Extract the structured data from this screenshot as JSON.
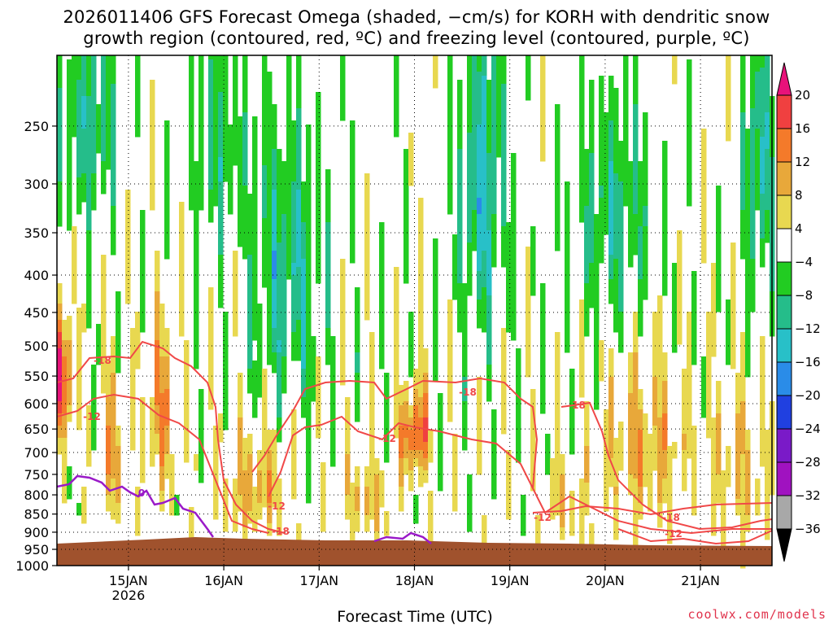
{
  "chart_data": {
    "type": "heatmap",
    "title_line1": "2026011406 GFS Forecast Omega (shaded, −cm/s) for KORH with dendritic snow",
    "title_line2": "growth region (contoured, red, ºC) and freezing level (contoured, purple, ºC)",
    "xlabel": "Forecast Time (UTC)",
    "ylabel": "",
    "y_ticks": [
      250,
      300,
      350,
      400,
      450,
      500,
      550,
      600,
      650,
      700,
      750,
      800,
      850,
      900,
      950,
      1000
    ],
    "y_scale": "log-pressure",
    "ylim": [
      1000,
      200
    ],
    "x_ticks": [
      {
        "label": "15JAN",
        "sub": "2026",
        "hours": 18
      },
      {
        "label": "16JAN",
        "sub": "",
        "hours": 42
      },
      {
        "label": "17JAN",
        "sub": "",
        "hours": 66
      },
      {
        "label": "18JAN",
        "sub": "",
        "hours": 90
      },
      {
        "label": "19JAN",
        "sub": "",
        "hours": 114
      },
      {
        "label": "20JAN",
        "sub": "",
        "hours": 138
      },
      {
        "label": "21JAN",
        "sub": "",
        "hours": 162
      }
    ],
    "xlim_hours": [
      0,
      180
    ],
    "grid": true,
    "colorbar": {
      "labels": [
        "20",
        "16",
        "12",
        "8",
        "4",
        "−4",
        "−8",
        "−12",
        "−16",
        "−20",
        "−24",
        "−28",
        "−32",
        "−36"
      ],
      "colors": [
        "#e8127a",
        "#f04040",
        "#f47a2a",
        "#e8a83a",
        "#e8d850",
        "#ffffff",
        "#22cc22",
        "#25bd8a",
        "#28c0c8",
        "#2a8ce8",
        "#2040e0",
        "#7a1ac8",
        "#a012c0",
        "#a8a8a8",
        "#000000"
      ]
    },
    "contours": {
      "red_labels": [
        "-18",
        "-12",
        "-18",
        "-12",
        "-18",
        "-12",
        "-18",
        "-12",
        "-18",
        "-12"
      ],
      "purple_labels": [
        "0"
      ],
      "red_color": "#f04848",
      "purple_color": "#9a1ac8"
    },
    "terrain_color": "#a0522d"
  },
  "credit": "coolwx.com/models"
}
